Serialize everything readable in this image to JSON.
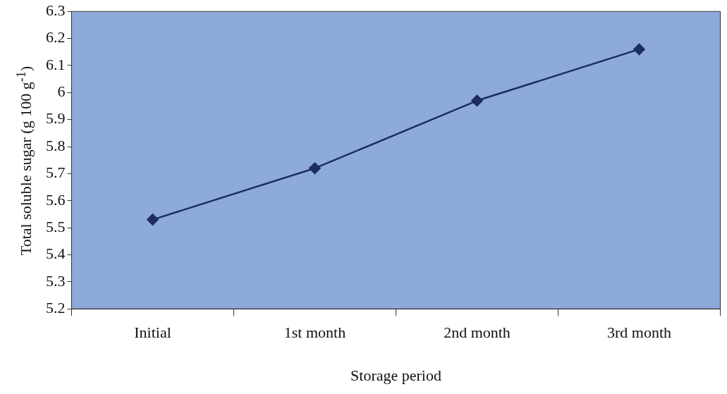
{
  "chart_data": {
    "type": "line",
    "xlabel": "Storage period",
    "ylabel": "Total soluble sugar (g 100 g$^{-1}$)",
    "categories": [
      "Initial",
      "1st month",
      "2nd month",
      "3rd month"
    ],
    "series": [
      {
        "color": "#1c2d5e",
        "values": [
          5.53,
          5.72,
          5.97,
          6.16
        ]
      }
    ],
    "ylim": [
      5.2,
      6.3
    ],
    "yticks": [
      5.2,
      5.3,
      5.4,
      5.5,
      5.6,
      5.7,
      5.8,
      5.9,
      {
        "value": 6,
        "label": "6"
      },
      6.1,
      6.2,
      6.3
    ],
    "grid": false,
    "legend": false,
    "marker": "diamond",
    "line_style": "solid"
  }
}
